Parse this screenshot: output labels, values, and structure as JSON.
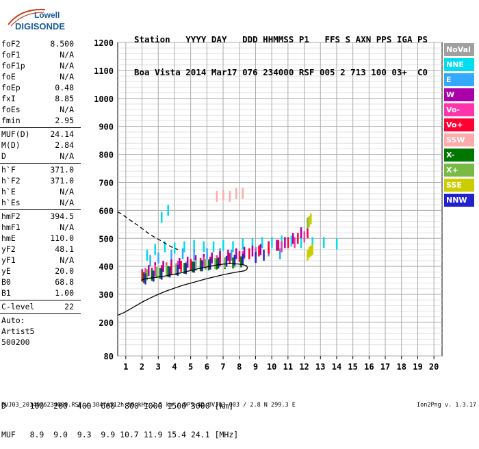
{
  "logo": {
    "line1": "Lowell",
    "line2": "DIGISONDE"
  },
  "header": {
    "fields": [
      "Station",
      "YYYY",
      "DAY",
      "DDD",
      "HHMMSS",
      "P1",
      "FFS",
      "S",
      "AXN",
      "PPS",
      "IGA",
      "PS"
    ],
    "values": [
      "Boa Vista",
      "2014",
      "Mar17",
      "076",
      "234000",
      "RSF",
      "005",
      "2",
      "713",
      "100",
      "03+",
      "C0"
    ]
  },
  "params": {
    "group1": [
      {
        "name": "foF2",
        "value": "8.500"
      },
      {
        "name": "foF1",
        "value": "N/A"
      },
      {
        "name": "foF1p",
        "value": "N/A"
      },
      {
        "name": "foE",
        "value": "N/A"
      },
      {
        "name": "foEp",
        "value": "0.48"
      },
      {
        "name": "fxI",
        "value": "8.85"
      },
      {
        "name": "foEs",
        "value": "N/A"
      },
      {
        "name": "fmin",
        "value": "2.95"
      }
    ],
    "group2": [
      {
        "name": "MUF(D)",
        "value": "24.14"
      },
      {
        "name": "M(D)",
        "value": "2.84"
      },
      {
        "name": "D",
        "value": "N/A"
      }
    ],
    "group3": [
      {
        "name": "h`F",
        "value": "371.0"
      },
      {
        "name": "h`F2",
        "value": "371.0"
      },
      {
        "name": "h`E",
        "value": "N/A"
      },
      {
        "name": "h`Es",
        "value": "N/A"
      }
    ],
    "group4": [
      {
        "name": "hmF2",
        "value": "394.5"
      },
      {
        "name": "hmF1",
        "value": "N/A"
      },
      {
        "name": "hmE",
        "value": "110.0"
      },
      {
        "name": "yF2",
        "value": "48.1"
      },
      {
        "name": "yF1",
        "value": "N/A"
      },
      {
        "name": "yE",
        "value": "20.0"
      },
      {
        "name": "B0",
        "value": "68.8"
      },
      {
        "name": "B1",
        "value": "1.00"
      }
    ],
    "group5": [
      {
        "name": "C-level",
        "value": "22"
      }
    ],
    "auto": [
      "Auto:",
      "Artist5",
      "500200"
    ]
  },
  "bottom": {
    "d_label": "D",
    "d_values": "100  200  400  600  800 1000 1500 3000 [km]",
    "muf_label": "MUF",
    "muf_values": "8.9  9.0  9.3  9.9 10.7 11.9 15.4 24.1 [MHz]"
  },
  "footer": {
    "left": "BVJ03_2014076234000.RSF / 384fx512h 50 kHz 2.5 km / DPS-4D BVJ03 003 / 2.8 N 299.3 E",
    "right": "Ion2Png v. 1.3.17"
  },
  "legend": [
    {
      "label": "NoVal",
      "color": "#a0a0a0"
    },
    {
      "label": "NNE",
      "color": "#00ddee"
    },
    {
      "label": "E",
      "color": "#33aaff"
    },
    {
      "label": "W",
      "color": "#aa00aa"
    },
    {
      "label": "Vo-",
      "color": "#ff33aa"
    },
    {
      "label": "Vo+",
      "color": "#ff0033"
    },
    {
      "label": "SSW",
      "color": "#ffaaaa"
    },
    {
      "label": "X-",
      "color": "#007700"
    },
    {
      "label": "X+",
      "color": "#77bb44"
    },
    {
      "label": "SSE",
      "color": "#cccc00"
    },
    {
      "label": "NNW",
      "color": "#2222cc"
    }
  ],
  "chart_data": {
    "type": "scatter",
    "xlim": [
      0.5,
      20.5
    ],
    "ylim": [
      80,
      1200
    ],
    "xticks": [
      1,
      2,
      3,
      4,
      5,
      6,
      7,
      8,
      9,
      10,
      11,
      12,
      13,
      14,
      15,
      16,
      17,
      18,
      19,
      20
    ],
    "yticks": [
      80,
      200,
      300,
      400,
      500,
      600,
      700,
      800,
      900,
      1000,
      1100,
      1200
    ],
    "grid": true,
    "legend_position": "right",
    "series": [
      {
        "name": "NNE",
        "color": "#00ddee",
        "x": [
          2.3,
          2.8,
          3.4,
          4.0,
          4.6,
          5.2,
          5.8,
          6.4,
          7.0,
          7.6,
          8.2,
          8.8,
          9.4,
          10.0,
          10.6,
          11.2,
          11.8,
          12.5,
          13.2,
          14.0,
          3.2,
          3.6
        ],
        "y": [
          440,
          460,
          470,
          465,
          470,
          475,
          470,
          470,
          475,
          470,
          480,
          480,
          485,
          485,
          490,
          490,
          485,
          485,
          485,
          480,
          575,
          600
        ]
      },
      {
        "name": "E",
        "color": "#33aaff",
        "x": [
          2.5,
          3.0,
          3.8,
          4.5,
          5.2,
          6.0,
          6.8,
          7.5,
          8.3,
          9.0,
          9.8,
          10.5
        ],
        "y": [
          420,
          430,
          440,
          445,
          440,
          445,
          445,
          440,
          445,
          450,
          455,
          445
        ]
      },
      {
        "name": "W",
        "color": "#aa00aa",
        "x": [
          2.0,
          2.4,
          2.8,
          3.3,
          3.8,
          4.3,
          4.8,
          5.3,
          5.8,
          6.3,
          6.8,
          7.3,
          7.8,
          8.3,
          8.8,
          9.3,
          9.8,
          10.3,
          10.8,
          11.3,
          11.8
        ],
        "y": [
          370,
          385,
          395,
          400,
          405,
          410,
          415,
          420,
          425,
          430,
          435,
          440,
          445,
          450,
          455,
          460,
          470,
          475,
          485,
          500,
          520
        ]
      },
      {
        "name": "Vo-",
        "color": "#ff33aa",
        "x": [
          2.2,
          2.8,
          3.5,
          4.2,
          5.0,
          5.8,
          6.6,
          7.4,
          8.2,
          9.0,
          9.8,
          10.6,
          11.4,
          12.0
        ],
        "y": [
          375,
          385,
          395,
          400,
          408,
          415,
          420,
          428,
          435,
          445,
          460,
          470,
          485,
          505
        ]
      },
      {
        "name": "Vo+",
        "color": "#ff0033",
        "x": [
          2.0,
          2.6,
          3.2,
          3.8,
          4.4,
          5.0,
          5.6,
          6.2,
          6.8,
          7.4,
          8.0,
          8.6,
          9.2,
          9.8,
          10.4,
          11.0,
          11.6,
          12.2
        ],
        "y": [
          365,
          375,
          385,
          390,
          400,
          405,
          410,
          415,
          420,
          428,
          435,
          445,
          455,
          465,
          475,
          485,
          500,
          520
        ]
      },
      {
        "name": "SSW",
        "color": "#ffaaaa",
        "x": [
          6.6,
          7.0,
          7.4,
          7.8,
          8.2
        ],
        "y": [
          650,
          655,
          650,
          660,
          660
        ]
      },
      {
        "name": "X-",
        "color": "#007700",
        "x": [
          2.1,
          2.6,
          3.1,
          3.6,
          4.1,
          4.6,
          5.1,
          5.6,
          6.1,
          6.6,
          7.1,
          7.6,
          8.1
        ],
        "y": [
          360,
          368,
          375,
          382,
          388,
          393,
          398,
          402,
          405,
          408,
          410,
          412,
          416
        ]
      },
      {
        "name": "X+",
        "color": "#77bb44",
        "x": [
          2.3,
          2.9,
          3.5,
          4.1,
          4.7,
          5.3,
          5.9,
          6.5,
          7.1,
          7.7,
          12.2
        ],
        "y": [
          370,
          378,
          386,
          392,
          398,
          403,
          407,
          410,
          413,
          416,
          555
        ]
      },
      {
        "name": "SSE",
        "color": "#cccc00",
        "x": [
          12.2,
          12.3,
          12.4,
          12.5,
          12.3,
          12.4
        ],
        "y": [
          440,
          450,
          455,
          460,
          560,
          570
        ]
      },
      {
        "name": "NNW",
        "color": "#2222cc",
        "x": [
          2.2,
          2.7,
          3.2,
          3.7,
          4.2,
          4.7,
          5.2,
          5.7,
          6.2,
          6.7,
          7.2,
          7.7,
          8.2,
          9.0,
          9.5
        ],
        "y": [
          355,
          365,
          372,
          380,
          386,
          392,
          397,
          402,
          408,
          412,
          418,
          422,
          425,
          432,
          440
        ]
      }
    ],
    "curves": [
      {
        "style": "solid",
        "color": "#000000",
        "x": [
          0.5,
          0.9,
          1.5,
          2.0,
          2.5,
          3.0,
          3.5,
          4.0,
          4.5,
          5.0,
          5.5,
          6.0,
          6.5,
          7.0,
          7.5,
          8.0,
          8.3,
          8.45,
          8.5,
          8.45,
          8.3,
          8.0,
          7.5,
          7.0,
          6.5,
          6.0,
          5.5,
          5.0,
          4.5,
          4.0,
          3.5,
          3.0,
          2.5,
          2.2,
          2.0,
          1.95
        ],
        "y": [
          225,
          235,
          255,
          272,
          287,
          300,
          312,
          322,
          332,
          340,
          348,
          356,
          363,
          370,
          376,
          381,
          384,
          388,
          395,
          402,
          405,
          408,
          410,
          408,
          404,
          398,
          392,
          385,
          378,
          372,
          366,
          362,
          358,
          356,
          352,
          350
        ]
      },
      {
        "style": "dashed",
        "color": "#000000",
        "x": [
          0.5,
          0.8,
          1.1,
          1.4,
          1.7,
          2.0,
          2.3,
          2.6,
          3.0,
          3.4,
          3.8,
          4.2
        ],
        "y": [
          595,
          585,
          572,
          560,
          548,
          535,
          522,
          510,
          497,
          483,
          470,
          460
        ]
      }
    ]
  }
}
